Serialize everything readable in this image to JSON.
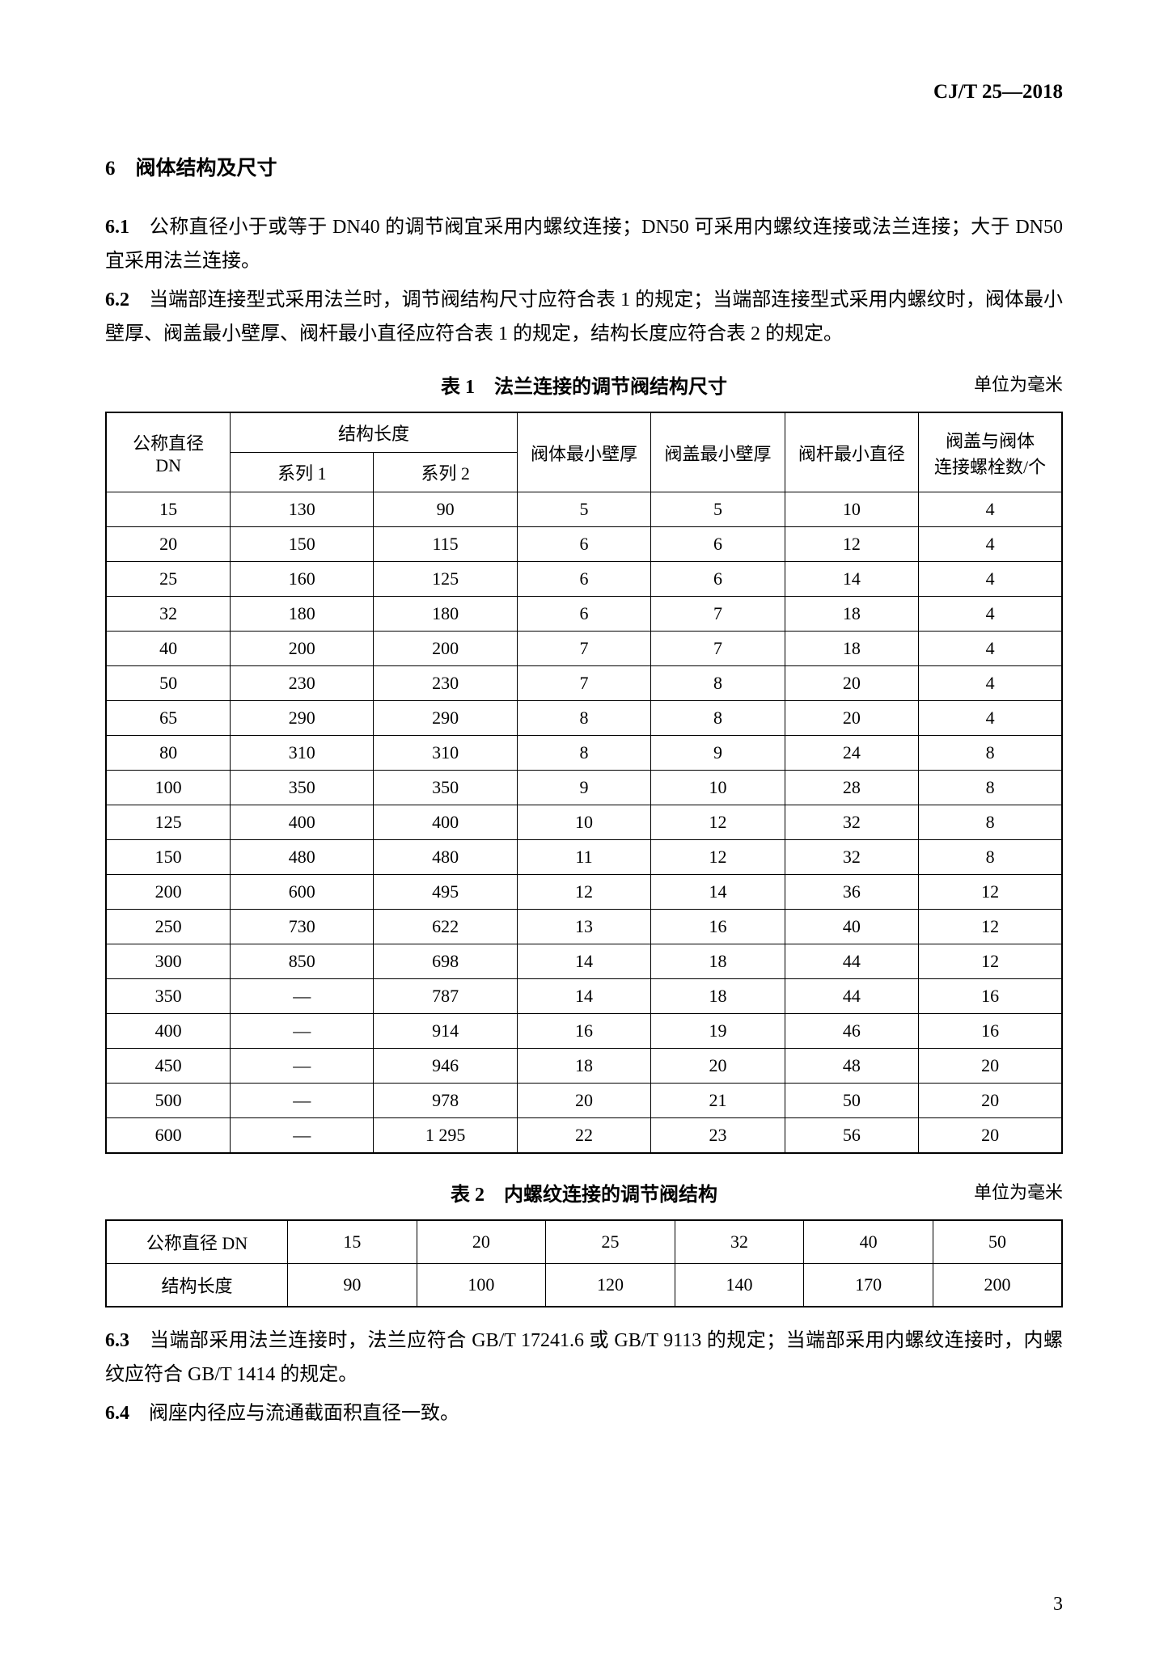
{
  "doc_id": "CJ/T 25—2018",
  "section6": {
    "heading": "6　阀体结构及尺寸",
    "p61_num": "6.1",
    "p61": "　公称直径小于或等于 DN40 的调节阀宜采用内螺纹连接；DN50 可采用内螺纹连接或法兰连接；大于 DN50 宜采用法兰连接。",
    "p62_num": "6.2",
    "p62": "　当端部连接型式采用法兰时，调节阀结构尺寸应符合表 1 的规定；当端部连接型式采用内螺纹时，阀体最小壁厚、阀盖最小壁厚、阀杆最小直径应符合表 1 的规定，结构长度应符合表 2 的规定。",
    "p63_num": "6.3",
    "p63": "　当端部采用法兰连接时，法兰应符合 GB/T 17241.6 或 GB/T 9113 的规定；当端部采用内螺纹连接时，内螺纹应符合 GB/T 1414 的规定。",
    "p64_num": "6.4",
    "p64": "　阀座内径应与流通截面积直径一致。"
  },
  "table1": {
    "title": "表 1　法兰连接的调节阀结构尺寸",
    "unit": "单位为毫米",
    "head": {
      "dn": "公称直径\nDN",
      "len": "结构长度",
      "s1": "系列 1",
      "s2": "系列 2",
      "body_wall": "阀体最小壁厚",
      "cover_wall": "阀盖最小壁厚",
      "stem_dia": "阀杆最小直径",
      "bolts": "阀盖与阀体\n连接螺栓数/个"
    },
    "rows": [
      [
        "15",
        "130",
        "90",
        "5",
        "5",
        "10",
        "4"
      ],
      [
        "20",
        "150",
        "115",
        "6",
        "6",
        "12",
        "4"
      ],
      [
        "25",
        "160",
        "125",
        "6",
        "6",
        "14",
        "4"
      ],
      [
        "32",
        "180",
        "180",
        "6",
        "7",
        "18",
        "4"
      ],
      [
        "40",
        "200",
        "200",
        "7",
        "7",
        "18",
        "4"
      ],
      [
        "50",
        "230",
        "230",
        "7",
        "8",
        "20",
        "4"
      ],
      [
        "65",
        "290",
        "290",
        "8",
        "8",
        "20",
        "4"
      ],
      [
        "80",
        "310",
        "310",
        "8",
        "9",
        "24",
        "8"
      ],
      [
        "100",
        "350",
        "350",
        "9",
        "10",
        "28",
        "8"
      ],
      [
        "125",
        "400",
        "400",
        "10",
        "12",
        "32",
        "8"
      ],
      [
        "150",
        "480",
        "480",
        "11",
        "12",
        "32",
        "8"
      ],
      [
        "200",
        "600",
        "495",
        "12",
        "14",
        "36",
        "12"
      ],
      [
        "250",
        "730",
        "622",
        "13",
        "16",
        "40",
        "12"
      ],
      [
        "300",
        "850",
        "698",
        "14",
        "18",
        "44",
        "12"
      ],
      [
        "350",
        "—",
        "787",
        "14",
        "18",
        "44",
        "16"
      ],
      [
        "400",
        "—",
        "914",
        "16",
        "19",
        "46",
        "16"
      ],
      [
        "450",
        "—",
        "946",
        "18",
        "20",
        "48",
        "20"
      ],
      [
        "500",
        "—",
        "978",
        "20",
        "21",
        "50",
        "20"
      ],
      [
        "600",
        "—",
        "1 295",
        "22",
        "23",
        "56",
        "20"
      ]
    ]
  },
  "table2": {
    "title": "表 2　内螺纹连接的调节阀结构",
    "unit": "单位为毫米",
    "head_dn": "公称直径 DN",
    "head_len": "结构长度",
    "dn_row": [
      "15",
      "20",
      "25",
      "32",
      "40",
      "50"
    ],
    "len_row": [
      "90",
      "100",
      "120",
      "140",
      "170",
      "200"
    ]
  },
  "page_number": "3",
  "styling": {
    "background_color": "#ffffff",
    "text_color": "#000000",
    "border_color": "#000000",
    "body_fontsize": 24,
    "table_fontsize": 22,
    "heading_fontsize": 25,
    "font_family": "SimSun"
  }
}
